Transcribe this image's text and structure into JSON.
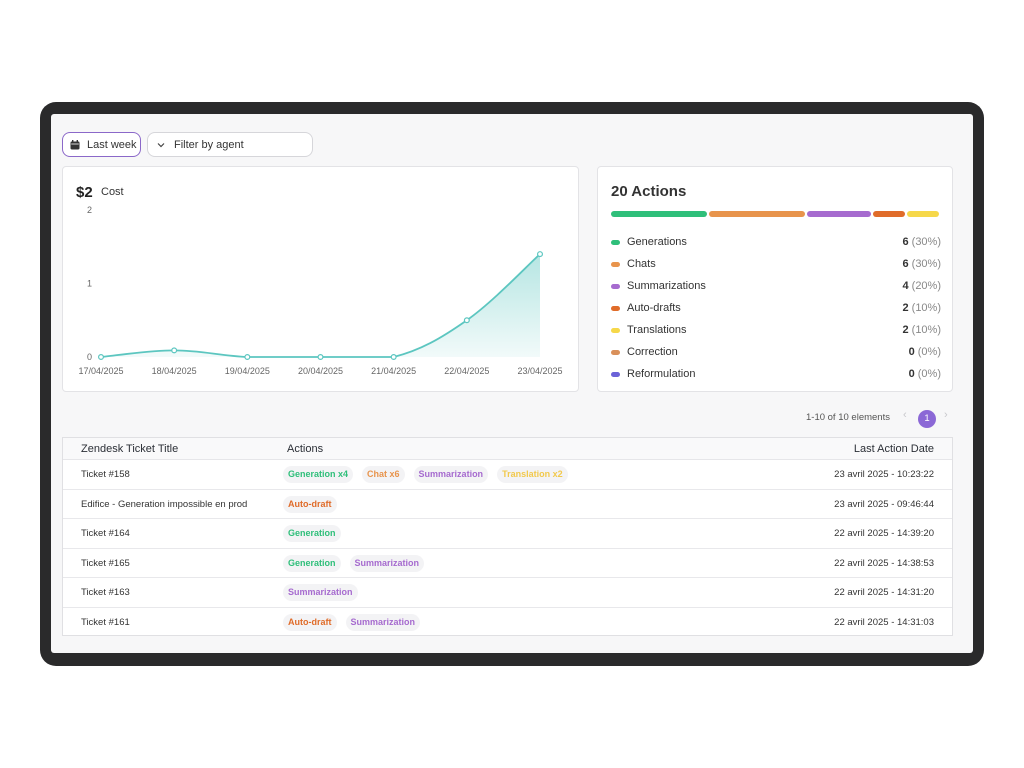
{
  "filters": {
    "date_label": "Last week",
    "agent_label": "Filter by agent"
  },
  "cost": {
    "value": "$2",
    "label": "Cost"
  },
  "chart_data": {
    "type": "area",
    "title": "",
    "x": [
      "17/04/2025",
      "18/04/2025",
      "19/04/2025",
      "20/04/2025",
      "21/04/2025",
      "22/04/2025",
      "23/04/2025"
    ],
    "values": [
      0,
      0.09,
      0,
      0,
      0,
      0.5,
      1.4
    ],
    "yticks": [
      "0",
      "1",
      "2"
    ],
    "ylim": [
      0,
      2
    ],
    "color": "#5cc6c0",
    "grid": false
  },
  "actions": {
    "title": "20 Actions",
    "items": [
      {
        "label": "Generations",
        "count": "6",
        "pct": "(30%)",
        "color": "#2fbf7a"
      },
      {
        "label": "Chats",
        "count": "6",
        "pct": "(30%)",
        "color": "#e8944c"
      },
      {
        "label": "Summarizations",
        "count": "4",
        "pct": "(20%)",
        "color": "#a66bcf"
      },
      {
        "label": "Auto-drafts",
        "count": "2",
        "pct": "(10%)",
        "color": "#e06c2a"
      },
      {
        "label": "Translations",
        "count": "2",
        "pct": "(10%)",
        "color": "#f6d84a"
      },
      {
        "label": "Correction",
        "count": "0",
        "pct": "(0%)",
        "color": "#d9905a"
      },
      {
        "label": "Reformulation",
        "count": "0",
        "pct": "(0%)",
        "color": "#6b63d8"
      }
    ]
  },
  "pagination": {
    "info": "1-10 of 10 elements",
    "current_page": "1",
    "prev": "‹",
    "next": "›"
  },
  "table": {
    "headers": {
      "title": "Zendesk Ticket Title",
      "actions": "Actions",
      "date": "Last Action Date"
    },
    "rows": [
      {
        "title": "Ticket #158",
        "date": "23 avril 2025 - 10:23:22",
        "tags": [
          {
            "text": "Generation x4",
            "color": "#2fbf7a"
          },
          {
            "text": "Chat x6",
            "color": "#e8944c"
          },
          {
            "text": "Summarization",
            "color": "#a66bcf"
          },
          {
            "text": "Translation x2",
            "color": "#f2c94c"
          }
        ]
      },
      {
        "title": "Edifice - Generation impossible en prod",
        "date": "23 avril 2025 - 09:46:44",
        "tags": [
          {
            "text": "Auto-draft",
            "color": "#e06c2a"
          }
        ]
      },
      {
        "title": "Ticket #164",
        "date": "22 avril 2025 - 14:39:20",
        "tags": [
          {
            "text": "Generation",
            "color": "#2fbf7a"
          }
        ]
      },
      {
        "title": "Ticket #165",
        "date": "22 avril 2025 - 14:38:53",
        "tags": [
          {
            "text": "Generation",
            "color": "#2fbf7a"
          },
          {
            "text": "Summarization",
            "color": "#a66bcf"
          }
        ]
      },
      {
        "title": "Ticket #163",
        "date": "22 avril 2025 - 14:31:20",
        "tags": [
          {
            "text": "Summarization",
            "color": "#a66bcf"
          }
        ]
      },
      {
        "title": "Ticket #161",
        "date": "22 avril 2025 - 14:31:03",
        "tags": [
          {
            "text": "Auto-draft",
            "color": "#e06c2a"
          },
          {
            "text": "Summarization",
            "color": "#a66bcf"
          }
        ]
      }
    ]
  }
}
